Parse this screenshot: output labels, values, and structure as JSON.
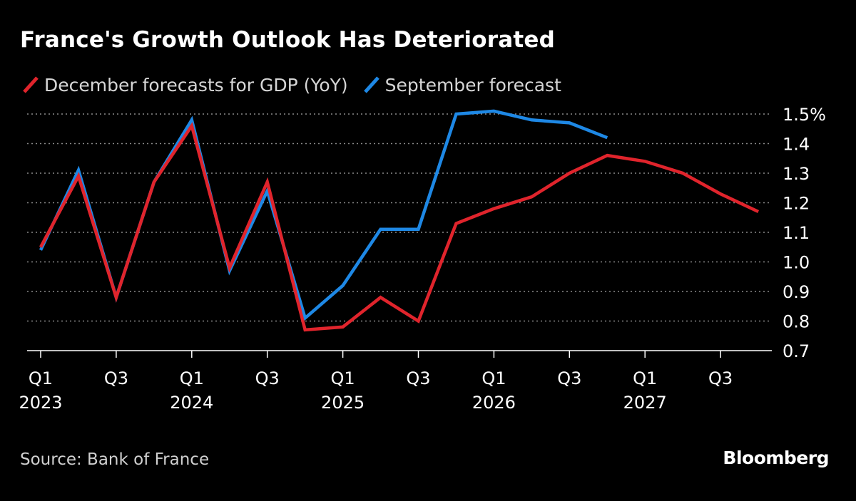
{
  "header": {
    "title": "France's Growth Outlook Has Deteriorated"
  },
  "footer": {
    "source": "Source: Bank of France",
    "brand": "Bloomberg"
  },
  "colors": {
    "background": "#000000",
    "december": "#e0242c",
    "september": "#1e88e5",
    "grid": "#8a8a8a",
    "text": "#ffffff",
    "muted": "#d0d0d0"
  },
  "chart_data": {
    "type": "line",
    "title": "France's Growth Outlook Has Deteriorated",
    "xlabel": "",
    "ylabel": "",
    "ylim": [
      0.7,
      1.5
    ],
    "y_ticks": [
      "0.7",
      "0.8",
      "0.9",
      "1.0",
      "1.1",
      "1.2",
      "1.3",
      "1.4",
      "1.5%"
    ],
    "y_tick_values": [
      0.7,
      0.8,
      0.9,
      1.0,
      1.1,
      1.2,
      1.3,
      1.4,
      1.5
    ],
    "grid": true,
    "legend_position": "top-left",
    "axis_position": "right",
    "categories": [
      "2023 Q1",
      "2023 Q2",
      "2023 Q3",
      "2023 Q4",
      "2024 Q1",
      "2024 Q2",
      "2024 Q3",
      "2024 Q4",
      "2025 Q1",
      "2025 Q2",
      "2025 Q3",
      "2025 Q4",
      "2026 Q1",
      "2026 Q2",
      "2026 Q3",
      "2026 Q4",
      "2027 Q1",
      "2027 Q2",
      "2027 Q3",
      "2027 Q4"
    ],
    "x_tick_labels": [
      {
        "index": 0,
        "quarter": "Q1",
        "year": "2023"
      },
      {
        "index": 2,
        "quarter": "Q3",
        "year": ""
      },
      {
        "index": 4,
        "quarter": "Q1",
        "year": "2024"
      },
      {
        "index": 6,
        "quarter": "Q3",
        "year": ""
      },
      {
        "index": 8,
        "quarter": "Q1",
        "year": "2025"
      },
      {
        "index": 10,
        "quarter": "Q3",
        "year": ""
      },
      {
        "index": 12,
        "quarter": "Q1",
        "year": "2026"
      },
      {
        "index": 14,
        "quarter": "Q3",
        "year": ""
      },
      {
        "index": 16,
        "quarter": "Q1",
        "year": "2027"
      },
      {
        "index": 18,
        "quarter": "Q3",
        "year": ""
      }
    ],
    "series": [
      {
        "name": "September forecast",
        "color": "#1e88e5",
        "values": [
          1.04,
          1.31,
          0.88,
          1.27,
          1.48,
          0.97,
          1.24,
          0.81,
          0.92,
          1.11,
          1.11,
          1.5,
          1.51,
          1.48,
          1.47,
          1.42,
          null,
          null,
          null,
          null
        ]
      },
      {
        "name": "December forecasts for GDP (YoY)",
        "color": "#e0242c",
        "values": [
          1.05,
          1.29,
          0.88,
          1.27,
          1.46,
          0.98,
          1.27,
          0.77,
          0.78,
          0.88,
          0.8,
          1.13,
          1.18,
          1.22,
          1.3,
          1.36,
          1.34,
          1.3,
          1.23,
          1.17
        ]
      }
    ]
  }
}
